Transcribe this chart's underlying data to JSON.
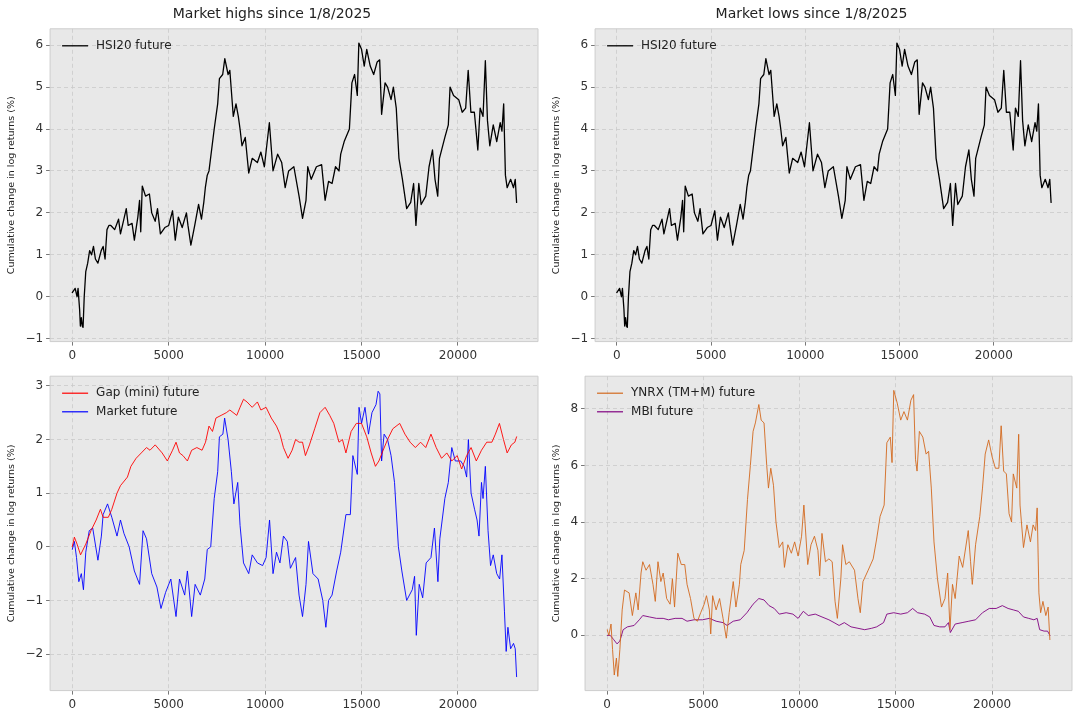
{
  "chart_data": [
    {
      "type": "line",
      "title": "Market highs since 1/8/2025",
      "ylabel": "Cumulative change in log returns (%)",
      "legend": "top left",
      "grid": true,
      "xlim": [
        -1150,
        24150
      ],
      "xticks": [
        0,
        5000,
        10000,
        15000,
        20000
      ],
      "ylim": [
        -1.07,
        6.39
      ],
      "yticks": [
        -1,
        0,
        1,
        2,
        3,
        4,
        5,
        6
      ],
      "series": [
        {
          "name": "HSI20 future",
          "color": "#000000",
          "x": [
            0,
            150,
            250,
            300,
            380,
            420,
            470,
            520,
            560,
            620,
            700,
            800,
            900,
            1000,
            1100,
            1200,
            1330,
            1500,
            1600,
            1700,
            1800,
            1900,
            2000,
            2200,
            2400,
            2500,
            2700,
            2800,
            2900,
            3100,
            3220,
            3400,
            3490,
            3550,
            3630,
            3800,
            4000,
            4120,
            4300,
            4420,
            4570,
            4800,
            5000,
            5200,
            5340,
            5500,
            5700,
            5920,
            6000,
            6150,
            6350,
            6550,
            6700,
            6820,
            6900,
            7000,
            7090,
            7360,
            7540,
            7630,
            7800,
            7910,
            8080,
            8170,
            8350,
            8490,
            8610,
            8700,
            8800,
            8970,
            9150,
            9330,
            9600,
            9780,
            9960,
            10220,
            10410,
            10650,
            10860,
            11040,
            11220,
            11490,
            11760,
            11940,
            12120,
            12210,
            12390,
            12660,
            12930,
            13110,
            13290,
            13470,
            13650,
            13830,
            13920,
            14100,
            14370,
            14500,
            14640,
            14780,
            14860,
            15000,
            15140,
            15270,
            15450,
            15630,
            15810,
            15940,
            16040,
            16220,
            16350,
            16530,
            16650,
            16800,
            16940,
            17120,
            17340,
            17550,
            17700,
            17820,
            17970,
            18090,
            18330,
            18500,
            18680,
            18810,
            18950,
            19040,
            19320,
            19500,
            19590,
            19770,
            20040,
            20220,
            20400,
            20530,
            20670,
            20850,
            21030,
            21150,
            21300,
            21420,
            21530,
            21650,
            21830,
            22010,
            22190,
            22280,
            22370,
            22460,
            22550,
            22730,
            22880,
            22970,
            23040
          ],
          "values": [
            0.1,
            0.2,
            0.0,
            0.2,
            -0.3,
            -0.7,
            -0.5,
            -0.7,
            -0.73,
            0.0,
            0.6,
            0.8,
            1.1,
            1.0,
            1.2,
            0.9,
            0.8,
            1.1,
            1.2,
            0.9,
            1.6,
            1.7,
            1.7,
            1.6,
            1.85,
            1.5,
            1.9,
            2.1,
            1.7,
            1.75,
            1.35,
            1.9,
            2.3,
            1.55,
            2.64,
            2.4,
            2.45,
            2.0,
            1.8,
            2.1,
            1.5,
            1.65,
            1.7,
            2.05,
            1.35,
            1.9,
            1.65,
            2.0,
            1.7,
            1.23,
            1.7,
            2.2,
            1.85,
            2.25,
            2.6,
            2.9,
            3.0,
            4.0,
            4.6,
            5.2,
            5.3,
            5.68,
            5.3,
            5.4,
            4.3,
            4.6,
            4.3,
            4.0,
            3.6,
            3.8,
            2.95,
            3.3,
            3.2,
            3.45,
            3.1,
            4.15,
            3.0,
            3.4,
            3.2,
            2.6,
            3.0,
            3.1,
            2.4,
            1.87,
            2.3,
            3.1,
            2.8,
            3.1,
            3.15,
            2.3,
            2.75,
            2.7,
            3.1,
            3.0,
            3.4,
            3.7,
            4.0,
            5.1,
            5.3,
            4.8,
            6.05,
            5.9,
            5.5,
            5.9,
            5.5,
            5.3,
            5.6,
            5.65,
            4.35,
            5.1,
            5.0,
            4.7,
            5.0,
            4.5,
            3.3,
            2.8,
            2.1,
            2.25,
            2.7,
            1.7,
            2.7,
            2.2,
            2.4,
            3.1,
            3.5,
            2.8,
            2.4,
            3.3,
            3.8,
            4.1,
            5.0,
            4.8,
            4.7,
            4.4,
            4.5,
            5.4,
            4.4,
            4.4,
            3.5,
            4.5,
            4.3,
            5.63,
            4.2,
            3.6,
            4.1,
            3.7,
            4.15,
            3.95,
            4.6,
            2.9,
            2.6,
            2.8,
            2.6,
            2.8,
            2.25
          ]
        }
      ]
    },
    {
      "type": "line",
      "title": "Market lows since 1/8/2025",
      "ylabel": "Cumulative change in log returns (%)",
      "legend": "top left",
      "grid": true,
      "xlim": [
        -1150,
        24150
      ],
      "xticks": [
        0,
        5000,
        10000,
        15000,
        20000
      ],
      "ylim": [
        -1.07,
        6.39
      ],
      "yticks": [
        -1,
        0,
        1,
        2,
        3,
        4,
        5,
        6
      ],
      "series": [
        {
          "name": "HSI20 future",
          "color": "#000000",
          "x": [
            0,
            150,
            250,
            300,
            380,
            420,
            470,
            520,
            560,
            620,
            700,
            800,
            900,
            1000,
            1100,
            1200,
            1330,
            1500,
            1600,
            1700,
            1800,
            1900,
            2000,
            2200,
            2400,
            2500,
            2700,
            2800,
            2900,
            3100,
            3220,
            3400,
            3490,
            3550,
            3630,
            3800,
            4000,
            4120,
            4300,
            4420,
            4570,
            4800,
            5000,
            5200,
            5340,
            5500,
            5700,
            5920,
            6000,
            6150,
            6350,
            6550,
            6700,
            6820,
            6900,
            7000,
            7090,
            7360,
            7540,
            7630,
            7800,
            7910,
            8080,
            8170,
            8350,
            8490,
            8610,
            8700,
            8800,
            8970,
            9150,
            9330,
            9600,
            9780,
            9960,
            10220,
            10410,
            10650,
            10860,
            11040,
            11220,
            11490,
            11760,
            11940,
            12120,
            12210,
            12390,
            12660,
            12930,
            13110,
            13290,
            13470,
            13650,
            13830,
            13920,
            14100,
            14370,
            14500,
            14640,
            14780,
            14860,
            15000,
            15140,
            15270,
            15450,
            15630,
            15810,
            15940,
            16040,
            16220,
            16350,
            16530,
            16650,
            16800,
            16940,
            17120,
            17340,
            17550,
            17700,
            17820,
            17970,
            18090,
            18330,
            18500,
            18680,
            18810,
            18950,
            19040,
            19320,
            19500,
            19590,
            19770,
            20040,
            20220,
            20400,
            20530,
            20670,
            20850,
            21030,
            21150,
            21300,
            21420,
            21530,
            21650,
            21830,
            22010,
            22190,
            22280,
            22370,
            22460,
            22550,
            22730,
            22880,
            22970,
            23040
          ],
          "values": [
            0.1,
            0.2,
            0.0,
            0.2,
            -0.3,
            -0.7,
            -0.5,
            -0.7,
            -0.73,
            0.0,
            0.6,
            0.8,
            1.1,
            1.0,
            1.2,
            0.9,
            0.8,
            1.1,
            1.2,
            0.9,
            1.6,
            1.7,
            1.7,
            1.6,
            1.85,
            1.5,
            1.9,
            2.1,
            1.7,
            1.75,
            1.35,
            1.9,
            2.3,
            1.55,
            2.64,
            2.4,
            2.45,
            2.0,
            1.8,
            2.1,
            1.5,
            1.65,
            1.7,
            2.05,
            1.35,
            1.9,
            1.65,
            2.0,
            1.7,
            1.23,
            1.7,
            2.2,
            1.85,
            2.25,
            2.6,
            2.9,
            3.0,
            4.0,
            4.6,
            5.2,
            5.3,
            5.68,
            5.3,
            5.4,
            4.3,
            4.6,
            4.3,
            4.0,
            3.6,
            3.8,
            2.95,
            3.3,
            3.2,
            3.45,
            3.1,
            4.15,
            3.0,
            3.4,
            3.2,
            2.6,
            3.0,
            3.1,
            2.4,
            1.87,
            2.3,
            3.1,
            2.8,
            3.1,
            3.15,
            2.3,
            2.75,
            2.7,
            3.1,
            3.0,
            3.4,
            3.7,
            4.0,
            5.1,
            5.3,
            4.8,
            6.05,
            5.9,
            5.5,
            5.9,
            5.5,
            5.3,
            5.6,
            5.65,
            4.35,
            5.1,
            5.0,
            4.7,
            5.0,
            4.5,
            3.3,
            2.8,
            2.1,
            2.25,
            2.7,
            1.7,
            2.7,
            2.2,
            2.4,
            3.1,
            3.5,
            2.8,
            2.4,
            3.3,
            3.8,
            4.1,
            5.0,
            4.8,
            4.7,
            4.4,
            4.5,
            5.4,
            4.4,
            4.4,
            3.5,
            4.5,
            4.3,
            5.63,
            4.2,
            3.6,
            4.1,
            3.7,
            4.15,
            3.95,
            4.6,
            2.9,
            2.6,
            2.8,
            2.6,
            2.8,
            2.25
          ]
        }
      ]
    },
    {
      "type": "line",
      "ylabel": "Cumulative change in log returns (%)",
      "legend": "top left",
      "grid": true,
      "xlim": [
        -1150,
        24150
      ],
      "xticks": [
        0,
        5000,
        10000,
        15000,
        20000
      ],
      "ylim": [
        -2.68,
        3.18
      ],
      "yticks": [
        -2,
        -1,
        0,
        1,
        2,
        3
      ],
      "series": [
        {
          "name": "Gap (mini) future",
          "color": "#ff0000",
          "x": [
            0,
            110,
            250,
            430,
            700,
            970,
            1240,
            1460,
            1600,
            1870,
            2050,
            2320,
            2500,
            2860,
            3040,
            3310,
            3580,
            3850,
            4030,
            4300,
            4660,
            4930,
            5200,
            5380,
            5560,
            5740,
            5970,
            6190,
            6460,
            6730,
            6910,
            7090,
            7270,
            7450,
            7720,
            7990,
            8170,
            8530,
            8700,
            8880,
            9060,
            9330,
            9600,
            9780,
            10050,
            10320,
            10590,
            10770,
            10950,
            11190,
            11400,
            11580,
            11760,
            11940,
            12090,
            12300,
            12570,
            12840,
            13110,
            13350,
            13560,
            13830,
            14010,
            14190,
            14460,
            14730,
            15000,
            15270,
            15500,
            15720,
            15900,
            16120,
            16350,
            16620,
            16980,
            17250,
            17520,
            17790,
            18060,
            18330,
            18600,
            18870,
            19150,
            19420,
            19680,
            19960,
            20190,
            20450,
            20680,
            20950,
            21220,
            21490,
            21760,
            21940,
            22150,
            22360,
            22550,
            22770,
            22950,
            23040
          ],
          "values": [
            0.0,
            0.18,
            0.05,
            -0.15,
            0.05,
            0.3,
            0.5,
            0.7,
            0.55,
            0.55,
            0.7,
            1.0,
            1.14,
            1.3,
            1.5,
            1.65,
            1.75,
            1.85,
            1.8,
            1.9,
            1.75,
            1.6,
            1.8,
            1.95,
            1.75,
            1.7,
            1.6,
            1.8,
            1.85,
            1.8,
            1.95,
            2.25,
            2.15,
            2.4,
            2.45,
            2.5,
            2.55,
            2.45,
            2.6,
            2.75,
            2.7,
            2.6,
            2.7,
            2.55,
            2.6,
            2.4,
            2.25,
            2.1,
            1.85,
            1.65,
            1.8,
            2.0,
            1.95,
            1.95,
            1.7,
            1.9,
            2.2,
            2.5,
            2.6,
            2.45,
            2.3,
            1.95,
            2.0,
            1.75,
            2.15,
            2.3,
            2.3,
            2.05,
            1.75,
            1.5,
            1.6,
            1.8,
            2.0,
            2.2,
            2.3,
            2.1,
            1.95,
            1.85,
            1.95,
            1.85,
            2.1,
            1.85,
            1.65,
            1.75,
            1.6,
            1.7,
            1.45,
            1.7,
            1.85,
            1.6,
            1.8,
            1.95,
            1.95,
            2.1,
            2.3,
            2.0,
            1.75,
            1.9,
            1.95,
            2.05
          ]
        },
        {
          "name": "Market future",
          "color": "#0000ff",
          "x": [
            0,
            110,
            220,
            340,
            470,
            580,
            700,
            880,
            1060,
            1330,
            1510,
            1600,
            1830,
            2050,
            2320,
            2500,
            2680,
            2950,
            3220,
            3490,
            3670,
            3850,
            4120,
            4390,
            4600,
            4840,
            5110,
            5380,
            5560,
            5830,
            5970,
            6190,
            6370,
            6640,
            6870,
            7000,
            7180,
            7360,
            7540,
            7630,
            7810,
            7900,
            8080,
            8250,
            8380,
            8580,
            8700,
            8880,
            9150,
            9330,
            9600,
            9870,
            10050,
            10230,
            10410,
            10590,
            10770,
            10950,
            11150,
            11310,
            11580,
            11760,
            11940,
            12120,
            12250,
            12480,
            12750,
            12990,
            13150,
            13290,
            13470,
            13710,
            13920,
            14190,
            14420,
            14550,
            14780,
            14870,
            15000,
            15180,
            15360,
            15540,
            15750,
            15860,
            15950,
            16040,
            16170,
            16350,
            16530,
            16710,
            16910,
            17090,
            17340,
            17630,
            17750,
            17840,
            17990,
            18170,
            18350,
            18600,
            18780,
            18960,
            19060,
            19320,
            19500,
            19680,
            19860,
            20140,
            20320,
            20450,
            20540,
            20680,
            20860,
            20990,
            21090,
            21220,
            21300,
            21420,
            21560,
            21690,
            21830,
            22010,
            22160,
            22280,
            22410,
            22500,
            22590,
            22730,
            22880,
            22970,
            23040
          ],
          "values": [
            -0.05,
            0.1,
            -0.2,
            -0.65,
            -0.5,
            -0.8,
            -0.1,
            0.3,
            0.35,
            -0.25,
            0.2,
            0.6,
            0.8,
            0.55,
            0.2,
            0.5,
            0.25,
            0.0,
            -0.45,
            -0.7,
            0.3,
            0.15,
            -0.5,
            -0.75,
            -1.15,
            -0.85,
            -0.6,
            -1.3,
            -0.6,
            -0.9,
            -0.45,
            -1.3,
            -0.7,
            -0.9,
            -0.6,
            -0.05,
            0.0,
            0.9,
            1.4,
            2.05,
            2.1,
            2.4,
            2.0,
            1.4,
            0.8,
            1.2,
            0.4,
            -0.3,
            -0.5,
            -0.15,
            -0.3,
            -0.35,
            -0.2,
            0.5,
            -0.5,
            -0.1,
            -0.3,
            0.2,
            0.1,
            -0.4,
            -0.2,
            -0.9,
            -1.3,
            -0.7,
            0.1,
            -0.5,
            -0.6,
            -1.0,
            -1.5,
            -1.0,
            -0.9,
            -0.45,
            -0.1,
            0.6,
            0.6,
            1.7,
            1.35,
            2.6,
            2.3,
            2.6,
            2.1,
            2.5,
            2.65,
            2.9,
            2.85,
            1.6,
            2.1,
            2.0,
            1.7,
            1.2,
            0.0,
            -0.45,
            -1.0,
            -0.8,
            -0.55,
            -1.65,
            -0.7,
            -0.95,
            -0.3,
            -0.2,
            0.35,
            -0.65,
            0.15,
            0.9,
            1.2,
            1.85,
            1.6,
            1.6,
            1.5,
            1.3,
            2.0,
            1.0,
            0.7,
            0.5,
            0.2,
            1.2,
            0.9,
            1.5,
            0.3,
            -0.35,
            -0.15,
            -0.5,
            -0.6,
            -0.15,
            -1.2,
            -1.95,
            -1.5,
            -1.9,
            -1.8,
            -1.9,
            -2.42
          ]
        }
      ]
    },
    {
      "type": "line",
      "ylabel": "Cumulative change in log returns (%)",
      "legend": "top left",
      "grid": true,
      "xlim": [
        -1150,
        24150
      ],
      "xticks": [
        0,
        5000,
        10000,
        15000,
        20000
      ],
      "ylim": [
        -1.95,
        9.15
      ],
      "yticks": [
        0,
        2,
        4,
        6,
        8
      ],
      "series": [
        {
          "name": "YNRX (TM+M) future",
          "color": "#d2691e",
          "x": [
            0,
            90,
            200,
            280,
            370,
            480,
            550,
            660,
            780,
            900,
            1140,
            1310,
            1490,
            1610,
            1760,
            1850,
            2020,
            2200,
            2380,
            2500,
            2640,
            2790,
            2910,
            3090,
            3270,
            3390,
            3500,
            3670,
            3850,
            4030,
            4150,
            4330,
            4510,
            4690,
            4860,
            5040,
            5160,
            5310,
            5380,
            5480,
            5660,
            5840,
            6020,
            6190,
            6340,
            6550,
            6690,
            6870,
            6940,
            7120,
            7290,
            7440,
            7580,
            7700,
            7880,
            8000,
            8150,
            8290,
            8380,
            8500,
            8640,
            8770,
            8940,
            9120,
            9210,
            9390,
            9570,
            9740,
            9920,
            10100,
            10220,
            10420,
            10590,
            10770,
            10950,
            11040,
            11160,
            11340,
            11520,
            11690,
            11840,
            11960,
            12140,
            12230,
            12400,
            12580,
            12850,
            13030,
            13150,
            13290,
            13560,
            13820,
            14000,
            14180,
            14390,
            14530,
            14710,
            14800,
            14890,
            15070,
            15250,
            15420,
            15600,
            15780,
            15920,
            16020,
            16100,
            16220,
            16400,
            16570,
            16700,
            16840,
            16980,
            17160,
            17370,
            17550,
            17690,
            17810,
            17940,
            18080,
            18290,
            18470,
            18760,
            18880,
            18970,
            19140,
            19360,
            19500,
            19640,
            19820,
            20000,
            20170,
            20350,
            20470,
            20600,
            20740,
            20880,
            21010,
            21100,
            21280,
            21380,
            21450,
            21630,
            21810,
            21990,
            22130,
            22260,
            22340,
            22430,
            22520,
            22640,
            22790,
            22910,
            23000
          ],
          "values": [
            0.2,
            0.0,
            0.4,
            -0.5,
            -1.4,
            -0.8,
            -1.45,
            -0.5,
            0.9,
            1.6,
            1.5,
            0.7,
            1.5,
            0.9,
            2.2,
            2.6,
            2.3,
            2.5,
            1.8,
            1.2,
            2.6,
            1.9,
            2.2,
            1.3,
            1.1,
            2.0,
            1.0,
            2.9,
            2.5,
            2.5,
            1.8,
            1.3,
            0.6,
            0.5,
            0.8,
            1.1,
            1.4,
            0.9,
            0.05,
            1.4,
            0.9,
            1.3,
            0.6,
            -0.1,
            0.8,
            1.9,
            1.0,
            1.8,
            2.5,
            3.0,
            4.8,
            6.0,
            7.2,
            7.5,
            8.15,
            7.6,
            7.5,
            6.0,
            5.2,
            5.9,
            5.3,
            4.0,
            3.1,
            3.3,
            2.4,
            3.2,
            2.9,
            3.3,
            2.8,
            3.5,
            4.6,
            2.5,
            3.2,
            3.5,
            3.0,
            2.1,
            3.6,
            2.6,
            2.7,
            2.6,
            1.2,
            0.6,
            2.0,
            3.2,
            2.5,
            2.6,
            2.3,
            1.3,
            0.8,
            1.9,
            2.3,
            2.7,
            3.4,
            4.2,
            4.6,
            6.8,
            7.0,
            6.1,
            8.65,
            8.2,
            7.6,
            7.9,
            7.6,
            8.3,
            8.5,
            6.2,
            5.8,
            7.2,
            7.0,
            6.4,
            6.5,
            5.2,
            3.3,
            2.0,
            1.0,
            1.3,
            2.2,
            0.2,
            1.8,
            1.3,
            2.8,
            2.4,
            3.7,
            2.6,
            1.8,
            3.2,
            4.2,
            5.2,
            6.4,
            6.9,
            6.3,
            5.9,
            5.9,
            7.4,
            5.8,
            5.7,
            4.3,
            4.0,
            5.7,
            5.2,
            7.1,
            4.6,
            3.1,
            3.9,
            3.3,
            3.9,
            3.7,
            4.5,
            1.5,
            0.8,
            1.2,
            0.7,
            1.0,
            -0.15
          ]
        },
        {
          "name": "MBI future",
          "color": "#800080",
          "x": [
            0,
            160,
            340,
            510,
            660,
            830,
            1050,
            1400,
            1670,
            1850,
            2200,
            2560,
            2910,
            3180,
            3530,
            3890,
            4150,
            4510,
            4950,
            5310,
            5660,
            6020,
            6230,
            6550,
            6910,
            7260,
            7580,
            7880,
            8150,
            8410,
            8680,
            8940,
            9300,
            9650,
            9920,
            10190,
            10450,
            10810,
            11160,
            11520,
            11790,
            12050,
            12320,
            12670,
            13030,
            13380,
            13740,
            14000,
            14360,
            14530,
            14890,
            15250,
            15600,
            15870,
            16130,
            16490,
            16760,
            16980,
            17280,
            17550,
            17730,
            17830,
            18080,
            18440,
            18790,
            19140,
            19500,
            19850,
            20210,
            20530,
            20830,
            21100,
            21360,
            21630,
            21900,
            22170,
            22340,
            22470,
            22700,
            22880,
            23000
          ],
          "values": [
            0.0,
            0.0,
            -0.15,
            -0.3,
            -0.2,
            0.2,
            0.3,
            0.35,
            0.55,
            0.7,
            0.65,
            0.6,
            0.6,
            0.55,
            0.6,
            0.6,
            0.5,
            0.55,
            0.55,
            0.6,
            0.5,
            0.45,
            0.35,
            0.5,
            0.55,
            0.8,
            1.1,
            1.3,
            1.25,
            1.05,
            0.95,
            0.75,
            0.8,
            0.75,
            0.6,
            0.85,
            0.7,
            0.75,
            0.65,
            0.55,
            0.45,
            0.35,
            0.45,
            0.3,
            0.25,
            0.2,
            0.25,
            0.3,
            0.45,
            0.75,
            0.8,
            0.75,
            0.8,
            0.95,
            0.8,
            0.75,
            0.65,
            0.35,
            0.3,
            0.3,
            0.45,
            0.1,
            0.4,
            0.45,
            0.5,
            0.55,
            0.8,
            0.95,
            0.95,
            1.05,
            0.95,
            0.9,
            0.85,
            0.65,
            0.6,
            0.55,
            0.6,
            0.2,
            0.15,
            0.15,
            0.0
          ]
        }
      ]
    }
  ]
}
